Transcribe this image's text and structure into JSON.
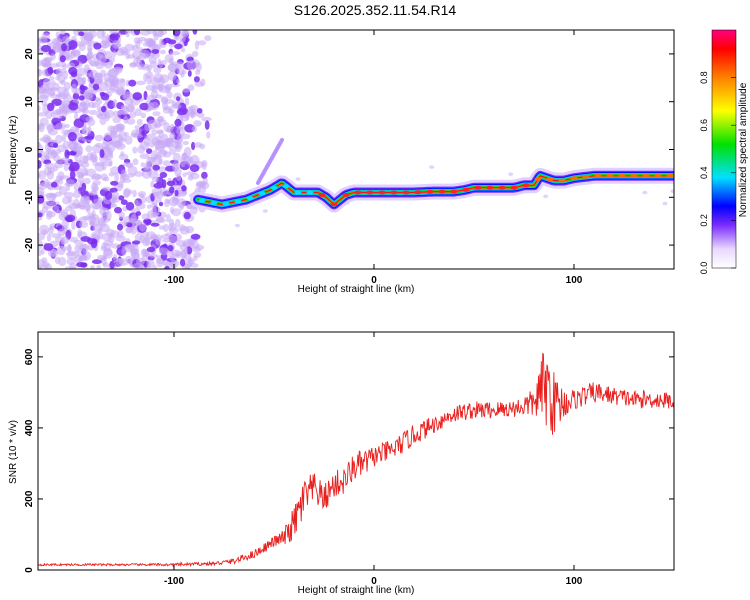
{
  "title": "S126.2025.352.11.54.R14",
  "chart_data": [
    {
      "type": "heatmap",
      "xlabel": "Height of straight line (km)",
      "ylabel": "Frequency (Hz)",
      "xlim": [
        -168,
        150
      ],
      "ylim": [
        -25,
        25
      ],
      "xticks": [
        -100,
        0,
        100
      ],
      "yticks": [
        -20,
        -10,
        0,
        10,
        20
      ],
      "ridge": {
        "x": [
          -88,
          -82,
          -76,
          -70,
          -64,
          -58,
          -52,
          -46,
          -40,
          -34,
          -28,
          -24,
          -20,
          -17,
          -14,
          -10,
          -5,
          0,
          10,
          20,
          30,
          40,
          45,
          50,
          60,
          70,
          75,
          80,
          83,
          90,
          95,
          100,
          110,
          120,
          130,
          140,
          150
        ],
        "y": [
          -10.5,
          -11,
          -11.5,
          -11,
          -10.5,
          -9.5,
          -8.5,
          -7,
          -9,
          -9,
          -9,
          -10,
          -11.5,
          -10.5,
          -9.5,
          -9,
          -9,
          -9,
          -9,
          -9,
          -8.8,
          -8.8,
          -8.5,
          -8,
          -8,
          -8,
          -7.5,
          -7.5,
          -5.5,
          -6.5,
          -6.5,
          -6,
          -5.5,
          -5.5,
          -5.5,
          -5.5,
          -5.5
        ]
      },
      "colorbar": {
        "label": "Normalized spectral amplitude",
        "range": [
          0,
          1
        ],
        "ticks": [
          "0.0",
          "0.2",
          "0.4",
          "0.6",
          "0.8"
        ]
      }
    },
    {
      "type": "line",
      "xlabel": "Height of straight line (km)",
      "ylabel": "SNR (10 * v/v)",
      "xlim": [
        -168,
        150
      ],
      "ylim": [
        0,
        670
      ],
      "xticks": [
        -100,
        0,
        100
      ],
      "yticks": [
        0,
        200,
        400,
        600
      ],
      "series": [
        {
          "color": "#e8201e",
          "x": [
            -168,
            -140,
            -120,
            -100,
            -80,
            -70,
            -60,
            -50,
            -45,
            -40,
            -35,
            -30,
            -25,
            -20,
            -15,
            -10,
            -5,
            0,
            5,
            10,
            20,
            30,
            40,
            50,
            60,
            70,
            80,
            85,
            88,
            90,
            95,
            100,
            110,
            120,
            130,
            140,
            150
          ],
          "y": [
            15,
            15,
            15,
            15,
            18,
            25,
            45,
            80,
            90,
            130,
            200,
            230,
            200,
            240,
            250,
            290,
            300,
            320,
            330,
            340,
            380,
            410,
            440,
            450,
            450,
            455,
            470,
            520,
            500,
            470,
            470,
            480,
            500,
            490,
            480,
            480,
            475
          ],
          "noise": [
            3,
            3,
            3,
            4,
            5,
            8,
            12,
            15,
            25,
            50,
            60,
            45,
            40,
            40,
            40,
            40,
            40,
            30,
            30,
            30,
            30,
            25,
            25,
            25,
            25,
            25,
            40,
            110,
            120,
            90,
            45,
            30,
            30,
            25,
            25,
            25,
            25
          ]
        }
      ]
    }
  ]
}
